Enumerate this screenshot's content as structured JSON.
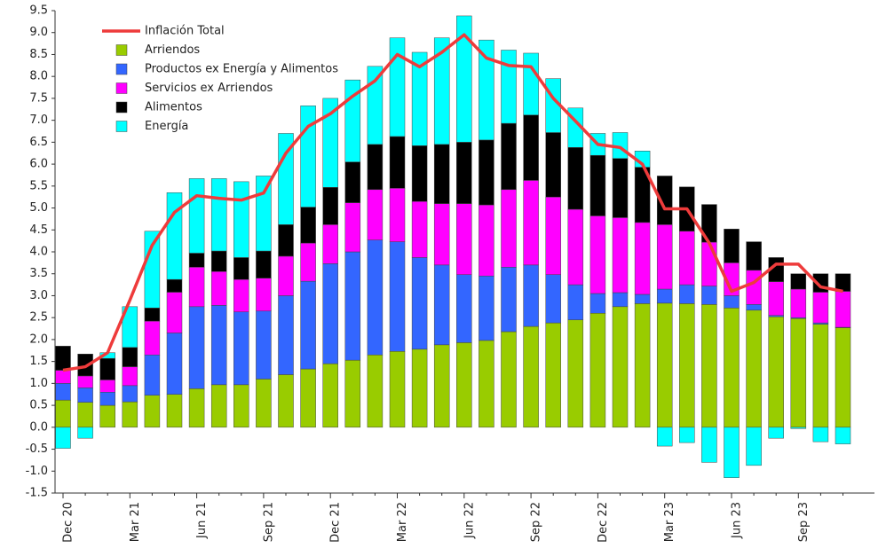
{
  "chart_data": {
    "type": "bar",
    "stacked": true,
    "categories": [
      "Dec 20",
      null,
      null,
      "Mar 21",
      null,
      null,
      "Jun 21",
      null,
      null,
      "Sep 21",
      null,
      null,
      "Dec 21",
      null,
      null,
      "Mar 22",
      null,
      null,
      "Jun 22",
      null,
      null,
      "Sep 22",
      null,
      null,
      "Dec 22",
      null,
      null,
      "Mar 23",
      null,
      null,
      "Jun 23",
      null,
      null,
      "Sep 23",
      null,
      null
    ],
    "series": [
      {
        "name": "Inflación Total",
        "type": "line",
        "color": "#ee3b3b",
        "values": [
          1.3,
          1.38,
          1.7,
          2.9,
          4.15,
          4.9,
          5.28,
          5.22,
          5.18,
          5.34,
          6.25,
          6.86,
          7.15,
          7.55,
          7.9,
          8.5,
          8.22,
          8.55,
          8.95,
          8.42,
          8.25,
          8.22,
          7.5,
          6.98,
          6.45,
          6.38,
          6.0,
          4.98,
          4.98,
          4.2,
          3.1,
          3.3,
          3.72,
          3.72,
          3.2,
          3.1
        ]
      },
      {
        "name": "Arriendos",
        "color": "#99cc00",
        "values": [
          0.62,
          0.57,
          0.5,
          0.58,
          0.73,
          0.75,
          0.88,
          0.97,
          0.97,
          1.1,
          1.2,
          1.33,
          1.45,
          1.53,
          1.65,
          1.73,
          1.78,
          1.88,
          1.93,
          1.98,
          2.18,
          2.3,
          2.38,
          2.45,
          2.6,
          2.75,
          2.82,
          2.83,
          2.82,
          2.8,
          2.72,
          2.67,
          2.52,
          2.48,
          2.35,
          2.27
        ]
      },
      {
        "name": "Productos ex Energía y Alimentos",
        "color": "#3366ff",
        "values": [
          0.38,
          0.33,
          0.3,
          0.37,
          0.92,
          1.4,
          1.87,
          1.81,
          1.66,
          1.55,
          1.8,
          2.0,
          2.28,
          2.47,
          2.62,
          2.5,
          2.09,
          1.82,
          1.55,
          1.47,
          1.47,
          1.4,
          1.1,
          0.8,
          0.45,
          0.32,
          0.21,
          0.32,
          0.43,
          0.42,
          0.28,
          0.13,
          0.03,
          0.02,
          0.03,
          0.01
        ]
      },
      {
        "name": "Servicios ex Arriendos",
        "color": "#ff00ff",
        "values": [
          0.3,
          0.27,
          0.28,
          0.43,
          0.77,
          0.93,
          0.9,
          0.77,
          0.74,
          0.75,
          0.9,
          0.87,
          0.89,
          1.12,
          1.15,
          1.22,
          1.28,
          1.4,
          1.62,
          1.62,
          1.77,
          1.93,
          1.77,
          1.72,
          1.77,
          1.71,
          1.64,
          1.47,
          1.22,
          1.0,
          0.75,
          0.78,
          0.77,
          0.65,
          0.7,
          0.82
        ]
      },
      {
        "name": "Alimentos",
        "color": "#000000",
        "values": [
          0.55,
          0.5,
          0.49,
          0.44,
          0.3,
          0.29,
          0.32,
          0.47,
          0.5,
          0.62,
          0.72,
          0.82,
          0.85,
          0.93,
          1.03,
          1.18,
          1.27,
          1.35,
          1.4,
          1.48,
          1.51,
          1.49,
          1.47,
          1.41,
          1.38,
          1.35,
          1.26,
          1.11,
          1.01,
          0.86,
          0.77,
          0.65,
          0.55,
          0.35,
          0.42,
          0.4
        ]
      },
      {
        "name": "Energía",
        "color": "#00ffff",
        "values": [
          -0.48,
          -0.25,
          0.13,
          0.93,
          1.75,
          1.98,
          1.7,
          1.65,
          1.73,
          1.71,
          2.08,
          2.31,
          2.03,
          1.87,
          1.78,
          2.25,
          2.13,
          2.43,
          2.88,
          2.28,
          1.67,
          1.41,
          1.23,
          0.9,
          0.5,
          0.59,
          0.37,
          -0.43,
          -0.35,
          -0.8,
          -1.15,
          -0.87,
          -0.25,
          -0.03,
          -0.33,
          -0.38
        ]
      }
    ],
    "ylim": [
      -1.5,
      9.5
    ],
    "yticks": [
      -1.5,
      {
        "value": -1,
        "label": "-1.0"
      },
      -0.5,
      {
        "value": 0,
        "label": "0.0"
      },
      0.5,
      {
        "value": 1,
        "label": "1.0"
      },
      1.5,
      {
        "value": 2,
        "label": "2.0"
      },
      2.5,
      {
        "value": 3,
        "label": "3.0"
      },
      3.5,
      {
        "value": 4,
        "label": "4.0"
      },
      4.5,
      {
        "value": 5,
        "label": "5.0"
      },
      5.5,
      {
        "value": 6,
        "label": "6.0"
      },
      6.5,
      {
        "value": 7,
        "label": "7.0"
      },
      7.5,
      {
        "value": 8,
        "label": "8.0"
      },
      8.5,
      {
        "value": 9,
        "label": "9.0"
      },
      9.5
    ],
    "legend": "upper left"
  }
}
